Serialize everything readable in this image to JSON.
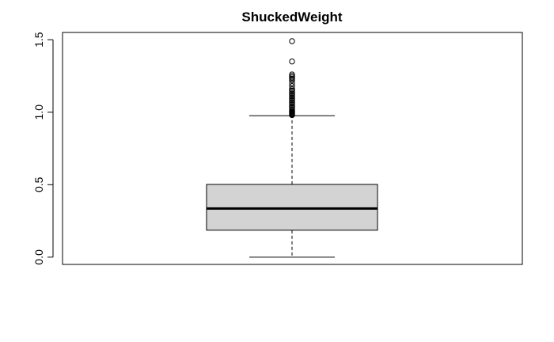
{
  "chart_data": {
    "type": "boxplot",
    "title": "ShuckedWeight",
    "xlabel": "",
    "ylabel": "",
    "ylim": [
      -0.05,
      1.55
    ],
    "y_ticks": [
      0.0,
      0.5,
      1.0,
      1.5
    ],
    "y_tick_labels": [
      "0.0",
      "0.5",
      "1.0",
      "1.5"
    ],
    "grid": false,
    "box": {
      "whisker_low": 0.0,
      "q1": 0.186,
      "median": 0.336,
      "q3": 0.502,
      "whisker_high": 0.976,
      "fill_color": "#d3d3d3"
    },
    "outliers": [
      0.98,
      0.985,
      0.99,
      0.995,
      1.0,
      1.005,
      1.01,
      1.02,
      1.03,
      1.04,
      1.05,
      1.06,
      1.07,
      1.08,
      1.09,
      1.1,
      1.11,
      1.12,
      1.13,
      1.14,
      1.15,
      1.16,
      1.18,
      1.2,
      1.22,
      1.23,
      1.24,
      1.25,
      1.26,
      1.35,
      1.49
    ]
  }
}
